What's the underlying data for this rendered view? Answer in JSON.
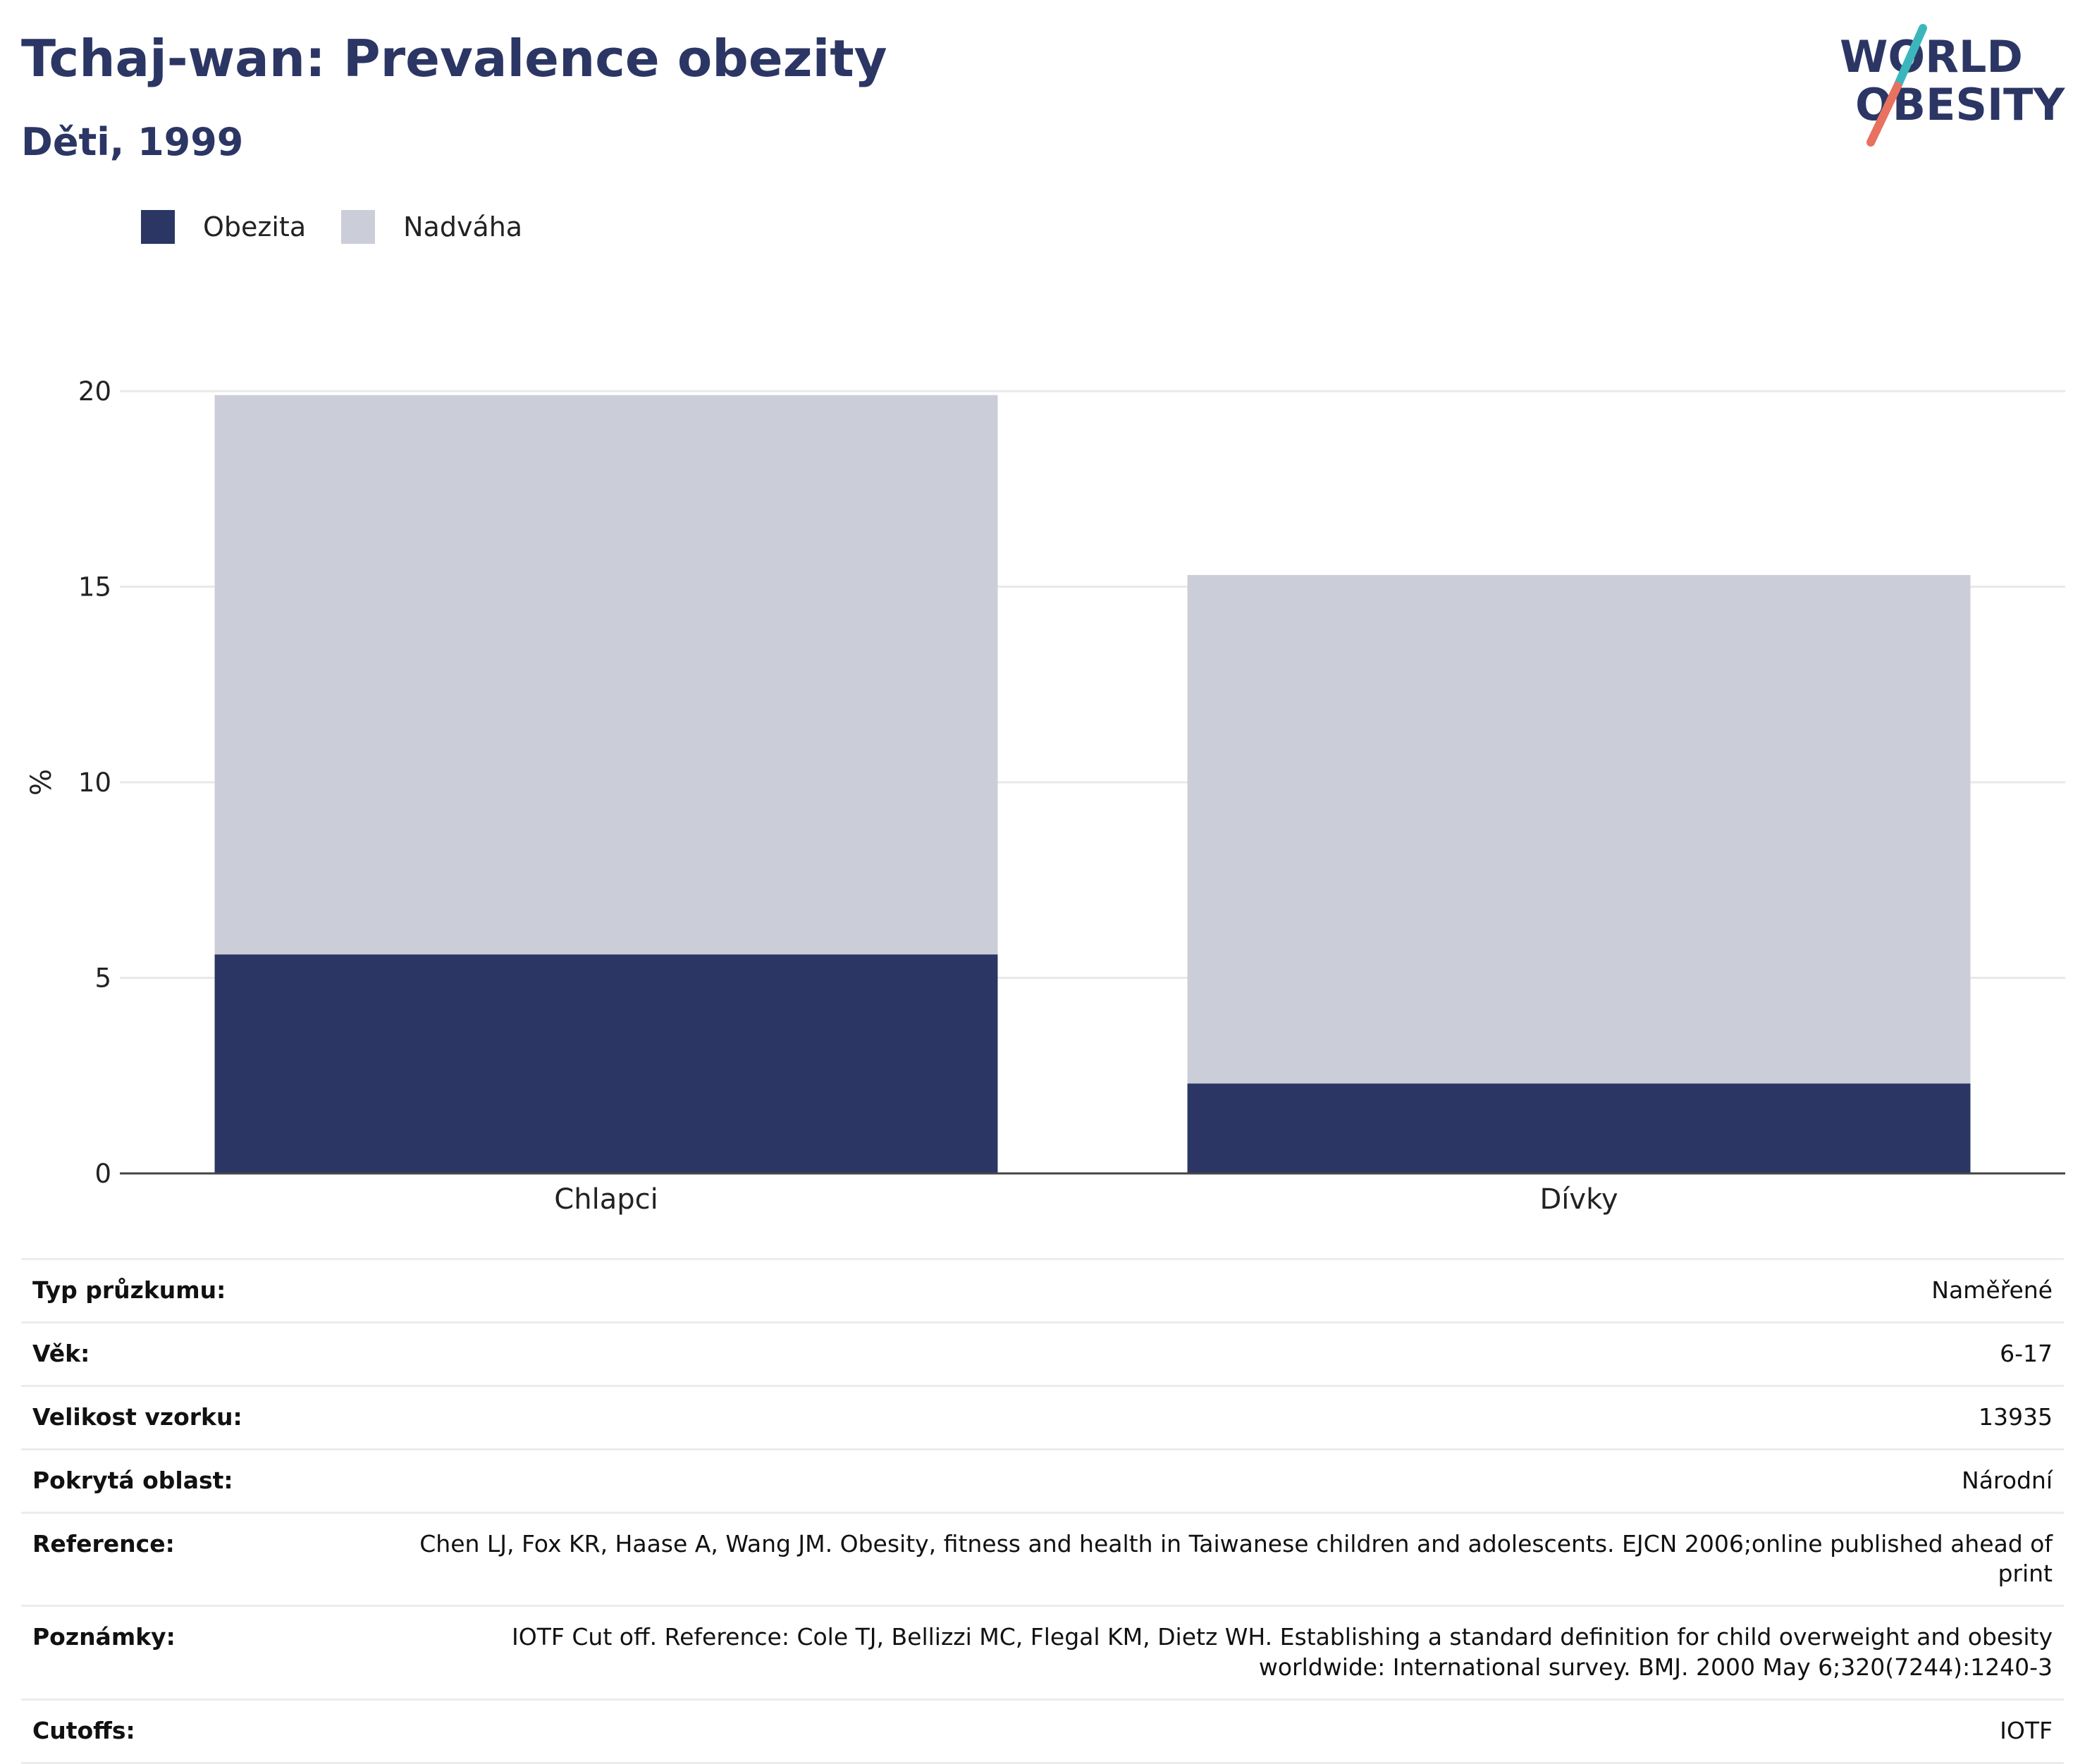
{
  "title": "Tchaj-wan: Prevalence obezity",
  "subtitle": "Děti, 1999",
  "logo": {
    "line1": "WORLD",
    "line2": "OBESITY",
    "accent_teal": "#3cb6bd",
    "accent_coral": "#e8715f",
    "text_color": "#2b3664"
  },
  "legend": [
    {
      "label": "Obezita",
      "color": "#2b3664"
    },
    {
      "label": "Nadváha",
      "color": "#cbcdd9"
    }
  ],
  "chart_data": {
    "type": "bar",
    "stacked": true,
    "categories": [
      "Chlapci",
      "Dívky"
    ],
    "series": [
      {
        "name": "Obezita",
        "values": [
          5.6,
          2.3
        ],
        "color": "#2b3664"
      },
      {
        "name": "Nadváha",
        "values": [
          14.3,
          13.0
        ],
        "color": "#cbcdd9"
      }
    ],
    "ylabel": "%",
    "ylim": [
      0,
      20
    ],
    "yticks": [
      0,
      5,
      10,
      15,
      20
    ],
    "grid": true,
    "legend_position": "top-left"
  },
  "info": [
    {
      "key": "Typ průzkumu:",
      "value": "Naměřené"
    },
    {
      "key": "Věk:",
      "value": "6-17"
    },
    {
      "key": "Velikost vzorku:",
      "value": "13935"
    },
    {
      "key": "Pokrytá oblast:",
      "value": "Národní"
    },
    {
      "key": "Reference:",
      "value": "Chen LJ, Fox KR, Haase A, Wang JM. Obesity, fitness and health in Taiwanese children and adolescents. EJCN 2006;online published ahead of print"
    },
    {
      "key": "Poznámky:",
      "value": "IOTF Cut off. Reference: Cole TJ, Bellizzi MC, Flegal KM, Dietz WH. Establishing a standard definition for child overweight and obesity worldwide: International survey. BMJ. 2000 May 6;320(7244):1240-3"
    },
    {
      "key": "Cutoffs:",
      "value": "IOTF"
    }
  ]
}
